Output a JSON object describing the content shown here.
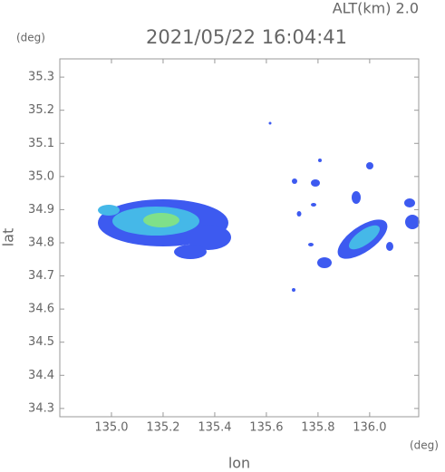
{
  "chart_data": {
    "type": "radar-map",
    "title": "2021/05/22 16:04:41",
    "altitude_label": "ALT(km)  2.0",
    "y_unit": "(deg)",
    "x_unit": "(deg)",
    "xlabel": "lon",
    "ylabel": "lat",
    "xlim": [
      134.8,
      136.19
    ],
    "ylim": [
      34.275,
      35.355
    ],
    "xticks": [
      {
        "value": 135,
        "label": "135.0"
      },
      135.2,
      135.4,
      135.6,
      135.8,
      {
        "value": 136,
        "label": "136.0"
      }
    ],
    "yticks": [
      34.3,
      34.4,
      34.5,
      34.6,
      34.7,
      34.8,
      34.9,
      {
        "value": 35,
        "label": "35.0"
      },
      35.1,
      35.2,
      35.3
    ],
    "grid": false
  }
}
